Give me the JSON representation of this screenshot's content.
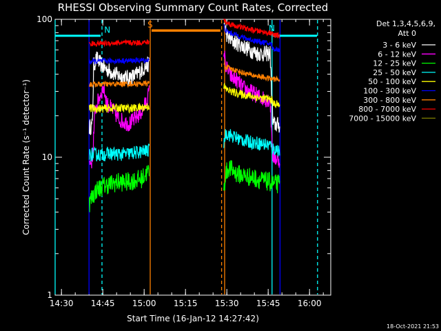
{
  "chart_data": {
    "type": "line",
    "title": "RHESSI Observing Summary Count Rates, Corrected",
    "xlabel": "Start Time (16-Jan-12 14:27:42)",
    "ylabel": "Corrected Count Rate (s⁻¹ detector⁻¹)",
    "x_units": "minutes after 14:27:42",
    "yscale": "log",
    "ylim": [
      1,
      100
    ],
    "xlim": [
      0,
      100
    ],
    "x_ticks": [
      {
        "t": 2.3,
        "label": "14:30"
      },
      {
        "t": 17.3,
        "label": "14:45"
      },
      {
        "t": 32.3,
        "label": "15:00"
      },
      {
        "t": 47.3,
        "label": "15:15"
      },
      {
        "t": 62.3,
        "label": "15:30"
      },
      {
        "t": 77.3,
        "label": "15:45"
      },
      {
        "t": 92.3,
        "label": "16:00"
      }
    ],
    "y_ticks": [
      {
        "v": 1,
        "label": "1"
      },
      {
        "v": 10,
        "label": "10"
      },
      {
        "v": 100,
        "label": "100"
      }
    ],
    "legend": {
      "header": [
        "Det 1,3,4,5,6,9,",
        "Att 0"
      ],
      "position": "right"
    },
    "series": [
      {
        "name": "3 - 6 keV",
        "color": "#ffffff",
        "noise": 0.06,
        "segments": [
          {
            "t": [
              12.4,
              13.5,
              14.0,
              15.0,
              16.0,
              17.5,
              20.0,
              23.0,
              26.0,
              29.0,
              32.0,
              34.2
            ],
            "v": [
              16.5,
              17.0,
              46.0,
              52.0,
              49.0,
              45.0,
              42.0,
              39.0,
              37.5,
              39.0,
              44.0,
              48.0
            ]
          },
          {
            "t": [
              61.2,
              62.5,
              64.0,
              67.0,
              70.0,
              73.0,
              76.0,
              78.0,
              79.0,
              81.5
            ],
            "v": [
              95.0,
              75.0,
              70.0,
              66.0,
              61.0,
              57.0,
              56.0,
              57.0,
              17.5,
              17.0
            ]
          }
        ]
      },
      {
        "name": "6 - 12 keV",
        "color": "#ff00ff",
        "noise": 0.06,
        "segments": [
          {
            "t": [
              12.4,
              13.5,
              14.5,
              16.0,
              17.5,
              19.0,
              21.0,
              23.0,
              25.0,
              27.0,
              29.0,
              31.5,
              33.0,
              34.2
            ],
            "v": [
              9.0,
              9.5,
              22.0,
              27.0,
              32.0,
              24.0,
              22.0,
              19.0,
              18.0,
              17.5,
              19.0,
              21.5,
              25.0,
              30.0
            ]
          },
          {
            "t": [
              61.2,
              62.0,
              64.0,
              66.0,
              68.0,
              70.0,
              72.0,
              74.0,
              76.0,
              78.0,
              79.0,
              81.5
            ],
            "v": [
              60.0,
              45.0,
              38.0,
              36.0,
              32.0,
              30.5,
              29.0,
              27.5,
              26.5,
              26.0,
              10.0,
              9.5
            ]
          }
        ]
      },
      {
        "name": "12 - 25 keV",
        "color": "#00ff00",
        "noise": 0.07,
        "segments": [
          {
            "t": [
              12.4,
              13.0,
              15.0,
              17.5,
              20.0,
              23.0,
              26.0,
              29.0,
              31.5,
              33.0,
              34.2
            ],
            "v": [
              4.6,
              5.0,
              5.8,
              6.2,
              6.4,
              6.6,
              6.6,
              6.8,
              7.0,
              7.6,
              8.0
            ]
          },
          {
            "t": [
              61.2,
              61.8,
              63.0,
              66.0,
              69.0,
              72.0,
              75.0,
              78.0,
              79.0,
              81.5
            ],
            "v": [
              5.5,
              7.5,
              8.4,
              7.6,
              7.3,
              7.1,
              6.8,
              6.6,
              6.4,
              6.4
            ]
          }
        ]
      },
      {
        "name": "25 - 50 keV",
        "color": "#00ffff",
        "noise": 0.05,
        "segments": [
          {
            "t": [
              12.4,
              13.0,
              16.0,
              20.0,
              24.0,
              28.0,
              32.0,
              34.2
            ],
            "v": [
              10.5,
              10.5,
              10.4,
              10.6,
              10.5,
              10.7,
              11.0,
              11.2
            ]
          },
          {
            "t": [
              61.2,
              62.0,
              64.0,
              67.0,
              70.0,
              73.0,
              76.0,
              78.0,
              79.0,
              81.5
            ],
            "v": [
              13.0,
              15.0,
              14.3,
              13.5,
              13.0,
              12.7,
              12.4,
              12.3,
              11.5,
              11.3
            ]
          }
        ]
      },
      {
        "name": "50 - 100 keV",
        "color": "#ffff00",
        "noise": 0.03,
        "segments": [
          {
            "t": [
              12.4,
              13.0,
              17.0,
              22.0,
              27.0,
              32.0,
              34.2
            ],
            "v": [
              22.5,
              22.5,
              22.5,
              22.8,
              22.6,
              23.0,
              23.5
            ]
          },
          {
            "t": [
              61.2,
              62.0,
              65.0,
              68.0,
              71.0,
              74.0,
              77.0,
              78.5,
              79.0,
              81.5
            ],
            "v": [
              33.0,
              31.0,
              29.5,
              28.5,
              27.8,
              27.0,
              26.5,
              26.3,
              24.5,
              24.0
            ]
          }
        ]
      },
      {
        "name": "100 - 300 keV",
        "color": "#0000ff",
        "noise": 0.02,
        "segments": [
          {
            "t": [
              12.4,
              13.0,
              18.0,
              23.0,
              28.0,
              33.0,
              34.2
            ],
            "v": [
              49.0,
              49.5,
              49.8,
              50.0,
              50.2,
              50.5,
              51.0
            ]
          },
          {
            "t": [
              61.2,
              62.0,
              65.0,
              68.0,
              71.0,
              74.0,
              77.0,
              78.5,
              79.0,
              81.5
            ],
            "v": [
              90.0,
              82.0,
              78.0,
              74.0,
              71.0,
              69.0,
              67.0,
              66.0,
              61.0,
              60.0
            ]
          }
        ]
      },
      {
        "name": "300 - 800 keV",
        "color": "#ff8000",
        "noise": 0.02,
        "segments": [
          {
            "t": [
              12.4,
              13.0,
              18.0,
              23.0,
              28.0,
              33.0,
              34.2
            ],
            "v": [
              33.5,
              33.8,
              33.8,
              34.0,
              34.0,
              34.2,
              34.5
            ]
          },
          {
            "t": [
              61.2,
              62.0,
              65.0,
              68.0,
              71.0,
              74.0,
              77.0,
              78.5,
              79.0,
              81.5
            ],
            "v": [
              48.0,
              45.0,
              43.0,
              41.0,
              39.5,
              38.5,
              37.5,
              37.0,
              37.0,
              36.5
            ]
          },
          {
            "t": [
              35.0,
              60.0
            ],
            "v": [
              83.0,
              83.0
            ],
            "width": 3.5,
            "noise": 0
          }
        ]
      },
      {
        "name": "800 - 7000 keV",
        "color": "#ff0000",
        "noise": 0.02,
        "segments": [
          {
            "t": [
              12.4,
              13.0,
              18.0,
              23.0,
              28.0,
              33.0,
              34.2
            ],
            "v": [
              66.0,
              66.5,
              67.0,
              67.5,
              67.5,
              68.0,
              68.5
            ]
          },
          {
            "t": [
              61.2,
              62.0,
              65.0,
              68.0,
              71.0,
              74.0,
              77.0,
              78.5,
              79.0,
              81.5
            ],
            "v": [
              100.0,
              95.0,
              90.0,
              87.0,
              84.0,
              82.0,
              80.0,
              79.0,
              77.0,
              76.0
            ]
          }
        ]
      },
      {
        "name": "7000 - 15000 keV",
        "color": "#808000",
        "noise": 0.02,
        "segments": []
      }
    ],
    "annotations": [
      {
        "type": "vline",
        "t": 0.0,
        "color": "#00ffff",
        "style": "solid"
      },
      {
        "type": "vline",
        "t": 17.0,
        "color": "#00ffff",
        "style": "dashed"
      },
      {
        "type": "vline",
        "t": 78.7,
        "color": "#00ffff",
        "style": "solid"
      },
      {
        "type": "vline",
        "t": 95.2,
        "color": "#00ffff",
        "style": "dashed"
      },
      {
        "type": "vline",
        "t": 12.3,
        "color": "#0000ff",
        "style": "solid"
      },
      {
        "type": "vline",
        "t": 81.6,
        "color": "#0000ff",
        "style": "solid"
      },
      {
        "type": "vline",
        "t": 34.5,
        "color": "#ff8000",
        "style": "solid"
      },
      {
        "type": "vline",
        "t": 60.4,
        "color": "#ff8000",
        "style": "dashed"
      },
      {
        "type": "vline",
        "t": 61.5,
        "color": "#ff8000",
        "style": "solid"
      },
      {
        "type": "hline",
        "t0": 0.0,
        "t1": 16.5,
        "v": 76,
        "color": "#00ffff"
      },
      {
        "type": "hline",
        "t0": 79.0,
        "t1": 95.0,
        "v": 76,
        "color": "#00ffff"
      },
      {
        "type": "label",
        "t": 17.8,
        "v": 80,
        "text": "N",
        "color": "#00ffff"
      },
      {
        "type": "label",
        "t": 33.5,
        "v": 87,
        "text": "S",
        "color": "#ff8000"
      },
      {
        "type": "label",
        "t": 77.5,
        "v": 82,
        "text": "N",
        "color": "#00ffff"
      }
    ]
  },
  "footer": {
    "timestamp": "18-Oct-2021 21:53"
  }
}
